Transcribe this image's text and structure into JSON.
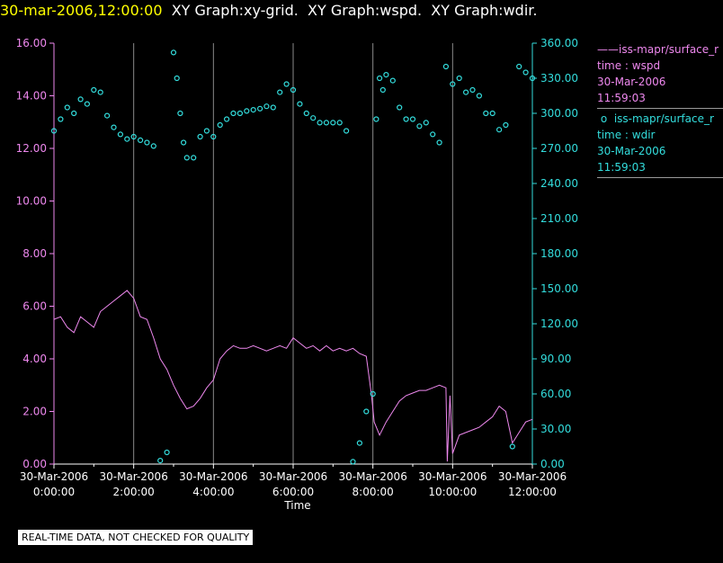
{
  "header": {
    "date": "30-mar-2006,12:00:00",
    "graphs": [
      "XY Graph:xy-grid.",
      "XY Graph:wspd.",
      "XY Graph:wdir."
    ]
  },
  "legend": [
    {
      "marker": "——",
      "series": "iss-mapr/surface_r",
      "var": "time : wspd",
      "date": "30-Mar-2006",
      "time": "11:59:03",
      "color": "#ee88ee"
    },
    {
      "marker": "o",
      "series": "iss-mapr/surface_r",
      "var": "time : wdir",
      "date": "30-Mar-2006",
      "time": "11:59:03",
      "color": "#33dddd"
    }
  ],
  "footer": {
    "qc_note": "REAL-TIME DATA, NOT CHECKED FOR QUALITY"
  },
  "chart_data": {
    "type": "line",
    "xlabel": "Time",
    "x_ticks": [
      {
        "date": "30-Mar-2006",
        "time": "0:00:00"
      },
      {
        "date": "30-Mar-2006",
        "time": "2:00:00"
      },
      {
        "date": "30-Mar-2006",
        "time": "4:00:00"
      },
      {
        "date": "30-Mar-2006",
        "time": "6:00:00"
      },
      {
        "date": "30-Mar-2006",
        "time": "8:00:00"
      },
      {
        "date": "30-Mar-2006",
        "time": "10:00:00"
      },
      {
        "date": "30-Mar-2006",
        "time": "12:00:00"
      }
    ],
    "xlim": [
      "30-Mar-2006 0:00:00",
      "30-Mar-2006 12:00:00"
    ],
    "y_left": {
      "ylim": [
        0,
        16
      ],
      "ticks": [
        "0.00",
        "2.00",
        "4.00",
        "6.00",
        "8.00",
        "10.00",
        "12.00",
        "14.00",
        "16.00"
      ],
      "color": "#ee88ee"
    },
    "y_right": {
      "ylim": [
        0,
        360
      ],
      "ticks": [
        "0.00",
        "30.00",
        "60.00",
        "90.00",
        "120.00",
        "150.00",
        "180.00",
        "210.00",
        "240.00",
        "270.00",
        "300.00",
        "330.00",
        "360.00"
      ],
      "color": "#33dddd"
    },
    "grid": "vertical lines at each x tick",
    "series": [
      {
        "name": "wspd",
        "axis": "left",
        "style": "line",
        "color": "#ee88ee",
        "x": [
          "0:00",
          "0:10",
          "0:20",
          "0:30",
          "0:40",
          "0:50",
          "1:00",
          "1:10",
          "1:20",
          "1:30",
          "1:40",
          "1:50",
          "2:00",
          "2:10",
          "2:20",
          "2:30",
          "2:40",
          "2:50",
          "3:00",
          "3:10",
          "3:20",
          "3:30",
          "3:40",
          "3:50",
          "4:00",
          "4:10",
          "4:20",
          "4:30",
          "4:40",
          "4:50",
          "5:00",
          "5:10",
          "5:20",
          "5:30",
          "5:40",
          "5:50",
          "6:00",
          "6:10",
          "6:20",
          "6:30",
          "6:40",
          "6:50",
          "7:00",
          "7:10",
          "7:20",
          "7:30",
          "7:40",
          "7:50",
          "7:58",
          "8:02",
          "8:10",
          "8:20",
          "8:30",
          "8:40",
          "8:50",
          "9:00",
          "9:10",
          "9:20",
          "9:30",
          "9:40",
          "9:50",
          "9:52",
          "9:56",
          "10:00",
          "10:10",
          "10:20",
          "10:30",
          "10:40",
          "10:50",
          "11:00",
          "11:10",
          "11:20",
          "11:30",
          "11:40",
          "11:50",
          "12:00"
        ],
        "values": [
          5.5,
          5.6,
          5.2,
          5.0,
          5.6,
          5.4,
          5.2,
          5.8,
          6.0,
          6.2,
          6.4,
          6.6,
          6.3,
          5.6,
          5.5,
          4.8,
          4.0,
          3.6,
          3.0,
          2.5,
          2.1,
          2.2,
          2.5,
          2.9,
          3.2,
          4.0,
          4.3,
          4.5,
          4.4,
          4.4,
          4.5,
          4.4,
          4.3,
          4.4,
          4.5,
          4.4,
          4.8,
          4.6,
          4.4,
          4.5,
          4.3,
          4.5,
          4.3,
          4.4,
          4.3,
          4.4,
          4.2,
          4.1,
          2.6,
          1.6,
          1.1,
          1.6,
          2.0,
          2.4,
          2.6,
          2.7,
          2.8,
          2.8,
          2.9,
          3.0,
          2.9,
          0.1,
          2.6,
          0.4,
          1.1,
          1.2,
          1.3,
          1.4,
          1.6,
          1.8,
          2.2,
          2.0,
          0.8,
          1.2,
          1.6,
          1.7
        ]
      },
      {
        "name": "wdir",
        "axis": "right",
        "style": "circles",
        "color": "#33dddd",
        "x": [
          "0:00",
          "0:10",
          "0:20",
          "0:30",
          "0:40",
          "0:50",
          "1:00",
          "1:10",
          "1:20",
          "1:30",
          "1:40",
          "1:50",
          "2:00",
          "2:10",
          "2:20",
          "2:30",
          "2:40",
          "2:50",
          "3:00",
          "3:05",
          "3:10",
          "3:15",
          "3:20",
          "3:30",
          "3:40",
          "3:50",
          "4:00",
          "4:10",
          "4:20",
          "4:30",
          "4:40",
          "4:50",
          "5:00",
          "5:10",
          "5:20",
          "5:30",
          "5:40",
          "5:50",
          "6:00",
          "6:10",
          "6:20",
          "6:30",
          "6:40",
          "6:50",
          "7:00",
          "7:10",
          "7:20",
          "7:30",
          "7:40",
          "7:50",
          "8:00",
          "8:05",
          "8:10",
          "8:15",
          "8:20",
          "8:30",
          "8:40",
          "8:50",
          "9:00",
          "9:10",
          "9:20",
          "9:30",
          "9:40",
          "9:50",
          "10:00",
          "10:10",
          "10:20",
          "10:30",
          "10:40",
          "10:50",
          "11:00",
          "11:10",
          "11:20",
          "11:30",
          "11:40",
          "11:50",
          "12:00"
        ],
        "values": [
          285,
          295,
          305,
          300,
          312,
          308,
          320,
          318,
          298,
          288,
          282,
          278,
          280,
          277,
          275,
          272,
          3,
          10,
          352,
          330,
          300,
          275,
          262,
          262,
          280,
          285,
          280,
          290,
          295,
          300,
          300,
          302,
          303,
          304,
          306,
          305,
          318,
          325,
          320,
          308,
          300,
          296,
          292,
          292,
          292,
          292,
          285,
          2,
          18,
          45,
          60,
          295,
          330,
          320,
          333,
          328,
          305,
          295,
          295,
          289,
          292,
          282,
          275,
          340,
          325,
          330,
          318,
          320,
          315,
          300,
          300,
          286,
          290,
          15,
          340,
          335,
          330
        ]
      }
    ]
  }
}
